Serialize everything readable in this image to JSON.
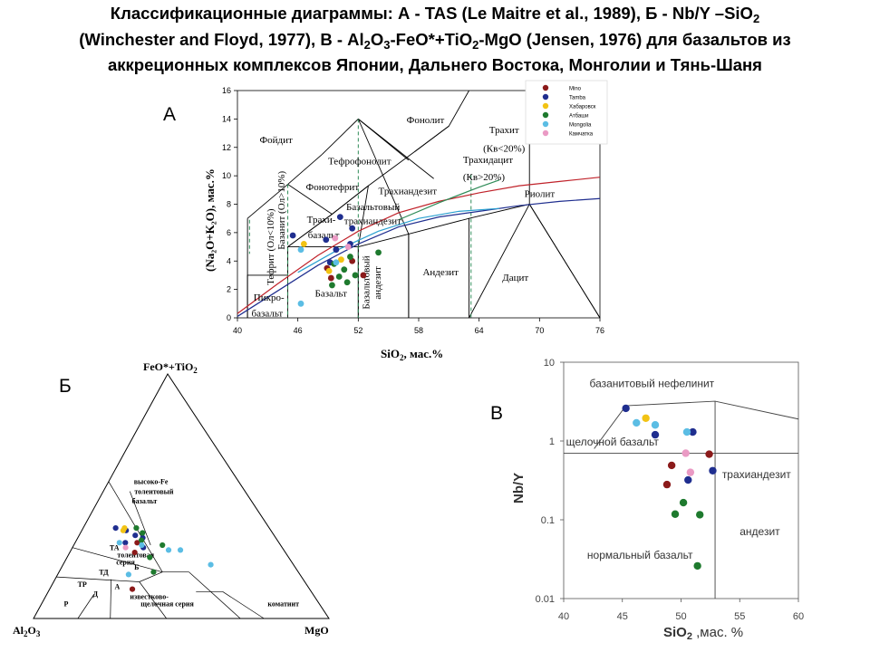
{
  "title": {
    "l1": "Классификационные диаграммы: А - TAS (Le Maitre et al., 1989), Б - Nb/Y –SiO",
    "l1_sub": "2",
    "l2a": "(Winchester and Floyd, 1977), В - Al",
    "l2_s1": "2",
    "l2b": "O",
    "l2_s2": "3",
    "l2c": "-FeO*+TiO",
    "l2_s3": "2",
    "l2d": "-MgO (Jensen, 1976) для базальтов из",
    "l3": "аккреционных комплексов Японии, Дальнего Востока, Монголии и Тянь-Шаня"
  },
  "colors": {
    "Mino": "#8b1a1a",
    "Tamba": "#1f2e8f",
    "Хабаровск": "#f2c314",
    "Атбаши": "#1e7a2e",
    "Mongolia": "#5bbde4",
    "Камчатка": "#ea9ac4"
  },
  "legend": [
    "Mino",
    "Tamba",
    "Хабаровск",
    "Атбаши",
    "Mongolia",
    "Камчатка"
  ],
  "panel_labels": {
    "a": "А",
    "b": "Б",
    "v": "В"
  },
  "chart_data": [
    {
      "id": "tas",
      "type": "scatter",
      "xlim": [
        40,
        76
      ],
      "ylim": [
        0,
        16
      ],
      "xticks": [
        40,
        46,
        52,
        58,
        64,
        70,
        76
      ],
      "yticks": [
        0,
        2,
        4,
        6,
        8,
        10,
        12,
        14,
        16
      ],
      "xlabel": "SiO",
      "xlabel_sub": "2",
      "xlabel_tail": ",  мас.%",
      "ylabel": "(Na₂O+K₂O), мас.%",
      "field_labels": [
        {
          "t": "Фойдит",
          "x": 42.2,
          "y": 12.3
        },
        {
          "t": "Тефрофонолит",
          "x": 49.0,
          "y": 10.8
        },
        {
          "t": "Фонолит",
          "x": 56.8,
          "y": 13.7
        },
        {
          "t": "Фонотефрит",
          "x": 46.8,
          "y": 9.0
        },
        {
          "t": "Трахит",
          "x": 65.0,
          "y": 13.0
        },
        {
          "t": "(Кв<20%)",
          "x": 64.4,
          "y": 11.7
        },
        {
          "t": "Трахидацит",
          "x": 62.4,
          "y": 10.9
        },
        {
          "t": "(Кв>20%)",
          "x": 62.4,
          "y": 9.7
        },
        {
          "t": "Трахиандезит",
          "x": 54.0,
          "y": 8.7
        },
        {
          "t": "Базальтовый",
          "x": 50.8,
          "y": 7.6
        },
        {
          "t": "трахиандезит",
          "x": 50.6,
          "y": 6.6
        },
        {
          "t": "Трахи-",
          "x": 46.9,
          "y": 6.7
        },
        {
          "t": "базальт",
          "x": 47.0,
          "y": 5.6
        },
        {
          "t": "Риолит",
          "x": 68.5,
          "y": 8.5
        },
        {
          "t": "Андезит",
          "x": 58.4,
          "y": 3.0
        },
        {
          "t": "Дацит",
          "x": 66.3,
          "y": 2.6
        },
        {
          "t": "Базальт",
          "x": 47.7,
          "y": 1.5
        },
        {
          "t": "Пикро-",
          "x": 41.6,
          "y": 1.2
        },
        {
          "t": "базальт",
          "x": 41.4,
          "y": 0.1
        }
      ],
      "vertical_labels": [
        {
          "t": "Тефрит (Ол<10%)",
          "x": 43.6,
          "y": 2.3
        },
        {
          "t": "Базанит (Ол>10%)",
          "x": 44.7,
          "y": 4.8
        },
        {
          "t": "Базальтовый",
          "x": 53.1,
          "y": 0.6
        },
        {
          "t": "андезит",
          "x": 54.2,
          "y": 1.3
        }
      ],
      "boundary_lines": [
        [
          [
            41,
            0
          ],
          [
            41,
            3
          ],
          [
            45,
            3
          ],
          [
            45,
            5
          ],
          [
            49.4,
            7.3
          ],
          [
            53,
            9.3
          ],
          [
            57.6,
            11.7
          ],
          [
            61,
            13.5
          ],
          [
            63,
            16.2
          ]
        ],
        [
          [
            45,
            0
          ],
          [
            45,
            5
          ]
        ],
        [
          [
            45,
            5
          ],
          [
            52,
            5
          ],
          [
            52,
            0
          ]
        ],
        [
          [
            52,
            5
          ],
          [
            57,
            5.9
          ],
          [
            57,
            0
          ]
        ],
        [
          [
            57,
            5.9
          ],
          [
            63,
            7
          ],
          [
            63,
            0
          ]
        ],
        [
          [
            63,
            7
          ],
          [
            69,
            8
          ],
          [
            69,
            13
          ]
        ],
        [
          [
            63,
            0
          ],
          [
            69,
            8
          ],
          [
            77,
            0
          ]
        ],
        [
          [
            52,
            14
          ],
          [
            57,
            5.9
          ]
        ],
        [
          [
            48.4,
            11.5
          ],
          [
            52,
            14
          ],
          [
            57,
            11.1
          ]
        ],
        [
          [
            52,
            14
          ],
          [
            59.5,
            9.8
          ]
        ],
        [
          [
            45,
            9.4
          ],
          [
            49.4,
            7.3
          ]
        ],
        [
          [
            45,
            9.4
          ],
          [
            48.4,
            11.5
          ]
        ],
        [
          [
            41,
            7
          ],
          [
            45,
            9.4
          ]
        ],
        [
          [
            41,
            0
          ],
          [
            41,
            7
          ]
        ],
        [
          [
            52,
            0
          ],
          [
            52,
            5
          ],
          [
            53,
            9.3
          ]
        ],
        [
          [
            57,
            0
          ],
          [
            57,
            5.9
          ]
        ],
        [
          [
            49.4,
            7.3
          ],
          [
            53,
            9.3
          ]
        ],
        [
          [
            45,
            5
          ],
          [
            49.4,
            7.3
          ]
        ],
        [
          [
            69,
            8
          ],
          [
            76,
            0
          ]
        ],
        [
          [
            57.6,
            11.7
          ],
          [
            61,
            13.5
          ]
        ]
      ],
      "dashed_lines": [
        [
          [
            45,
            9.4
          ],
          [
            45,
            0
          ]
        ],
        [
          [
            52,
            14
          ],
          [
            52,
            0
          ]
        ],
        [
          [
            63.2,
            10.1
          ],
          [
            63.2,
            0
          ]
        ],
        [
          [
            41.2,
            6.9
          ],
          [
            41.2,
            4.5
          ]
        ]
      ],
      "alkaline_curves": [
        {
          "color": "#c0222a",
          "pts": [
            [
              40,
              0.3
            ],
            [
              44,
              2.4
            ],
            [
              48,
              4.4
            ],
            [
              52,
              6.1
            ],
            [
              56,
              7.4
            ],
            [
              60,
              8.2
            ],
            [
              64,
              8.8
            ],
            [
              68,
              9.3
            ],
            [
              72,
              9.6
            ],
            [
              76,
              9.9
            ]
          ]
        },
        {
          "color": "#1f2e8f",
          "pts": [
            [
              40,
              0.1
            ],
            [
              44,
              1.9
            ],
            [
              48,
              3.7
            ],
            [
              52,
              5.2
            ],
            [
              56,
              6.4
            ],
            [
              60,
              7.1
            ],
            [
              64,
              7.5
            ],
            [
              68,
              7.9
            ],
            [
              72,
              8.2
            ],
            [
              76,
              8.4
            ]
          ]
        },
        {
          "color": "#2aa0d0",
          "pts": [
            [
              46,
              3.2
            ],
            [
              50,
              4.8
            ],
            [
              54,
              6.1
            ],
            [
              58,
              7.0
            ],
            [
              62,
              7.5
            ],
            [
              66,
              7.7
            ]
          ]
        },
        {
          "color": "#2e8b57",
          "pts": [
            [
              56,
              6.9
            ],
            [
              60,
              8.1
            ],
            [
              64,
              9.2
            ],
            [
              66,
              9.7
            ]
          ]
        }
      ],
      "points": [
        {
          "g": "Tamba",
          "x": 45.5,
          "y": 5.8
        },
        {
          "g": "Tamba",
          "x": 48.8,
          "y": 5.5
        },
        {
          "g": "Tamba",
          "x": 49.8,
          "y": 4.8
        },
        {
          "g": "Tamba",
          "x": 50.2,
          "y": 7.1
        },
        {
          "g": "Tamba",
          "x": 51.4,
          "y": 6.3
        },
        {
          "g": "Tamba",
          "x": 51.2,
          "y": 5.2
        },
        {
          "g": "Tamba",
          "x": 49.2,
          "y": 3.9
        },
        {
          "g": "Mino",
          "x": 48.9,
          "y": 3.5
        },
        {
          "g": "Mino",
          "x": 49.3,
          "y": 2.8
        },
        {
          "g": "Mino",
          "x": 51.4,
          "y": 4.0
        },
        {
          "g": "Mino",
          "x": 52.5,
          "y": 3.0
        },
        {
          "g": "Хабаровск",
          "x": 46.6,
          "y": 5.2
        },
        {
          "g": "Хабаровск",
          "x": 49.1,
          "y": 3.3
        },
        {
          "g": "Хабаровск",
          "x": 50.3,
          "y": 4.1
        },
        {
          "g": "Атбаши",
          "x": 49.6,
          "y": 3.8
        },
        {
          "g": "Атбаши",
          "x": 50.1,
          "y": 2.9
        },
        {
          "g": "Атбаши",
          "x": 50.6,
          "y": 3.4
        },
        {
          "g": "Атбаши",
          "x": 51.2,
          "y": 4.3
        },
        {
          "g": "Атбаши",
          "x": 51.7,
          "y": 3.0
        },
        {
          "g": "Атбаши",
          "x": 49.4,
          "y": 2.3
        },
        {
          "g": "Атбаши",
          "x": 50.9,
          "y": 2.5
        },
        {
          "g": "Атбаши",
          "x": 54.0,
          "y": 4.6
        },
        {
          "g": "Mongolia",
          "x": 46.3,
          "y": 4.8
        },
        {
          "g": "Mongolia",
          "x": 49.8,
          "y": 3.9
        },
        {
          "g": "Mongolia",
          "x": 46.3,
          "y": 1.0
        },
        {
          "g": "Камчатка",
          "x": 49.7,
          "y": 5.6
        },
        {
          "g": "Камчатка",
          "x": 51.0,
          "y": 5.0
        }
      ]
    },
    {
      "id": "jensen",
      "type": "scatter",
      "vertices": {
        "top": "FeO*+TiO",
        "top_sub": "2",
        "left": "Al",
        "left_s1": "2",
        "left_mid": "O",
        "left_s2": "3",
        "right": "MgO"
      },
      "field_labels": [
        {
          "t": "высоко-Fe",
          "a": 0.36,
          "f": 0.55
        },
        {
          "t": "толеитовый",
          "a": 0.38,
          "f": 0.51
        },
        {
          "t": "базальт",
          "a": 0.41,
          "f": 0.47
        },
        {
          "t": "ТА",
          "a": 0.59,
          "f": 0.28
        },
        {
          "t": "толеитовая",
          "a": 0.58,
          "f": 0.25
        },
        {
          "t": "серия",
          "a": 0.6,
          "f": 0.22
        },
        {
          "t": "ТД",
          "a": 0.68,
          "f": 0.18
        },
        {
          "t": "Б",
          "a": 0.55,
          "f": 0.2
        },
        {
          "t": "ТР",
          "a": 0.78,
          "f": 0.13
        },
        {
          "t": "Д",
          "a": 0.75,
          "f": 0.09
        },
        {
          "t": "А",
          "a": 0.66,
          "f": 0.12
        },
        {
          "t": "Р",
          "a": 0.87,
          "f": 0.05
        },
        {
          "t": "известково-",
          "a": 0.63,
          "f": 0.08
        },
        {
          "t": "щелочная серия",
          "a": 0.61,
          "f": 0.05
        },
        {
          "t": "коматиит",
          "a": 0.18,
          "f": 0.05
        }
      ],
      "points": [
        {
          "g": "Tamba",
          "a": 0.52,
          "f": 0.37
        },
        {
          "g": "Tamba",
          "a": 0.49,
          "f": 0.36
        },
        {
          "g": "Tamba",
          "a": 0.47,
          "f": 0.34
        },
        {
          "g": "Tamba",
          "a": 0.45,
          "f": 0.33
        },
        {
          "g": "Tamba",
          "a": 0.52,
          "f": 0.31
        },
        {
          "g": "Tamba",
          "a": 0.47,
          "f": 0.29
        },
        {
          "g": "Mino",
          "a": 0.48,
          "f": 0.31
        },
        {
          "g": "Mino",
          "a": 0.51,
          "f": 0.27
        },
        {
          "g": "Mino",
          "a": 0.6,
          "f": 0.12
        },
        {
          "g": "Хабаровск",
          "a": 0.5,
          "f": 0.36
        },
        {
          "g": "Хабаровск",
          "a": 0.49,
          "f": 0.37
        },
        {
          "g": "Атбаши",
          "a": 0.45,
          "f": 0.37
        },
        {
          "g": "Атбаши",
          "a": 0.44,
          "f": 0.35
        },
        {
          "g": "Атбаши",
          "a": 0.46,
          "f": 0.32
        },
        {
          "g": "Атбаши",
          "a": 0.4,
          "f": 0.3
        },
        {
          "g": "Атбаши",
          "a": 0.47,
          "f": 0.25
        },
        {
          "g": "Атбаши",
          "a": 0.49,
          "f": 0.19
        },
        {
          "g": "Mongolia",
          "a": 0.54,
          "f": 0.31
        },
        {
          "g": "Mongolia",
          "a": 0.47,
          "f": 0.3
        },
        {
          "g": "Mongolia",
          "a": 0.39,
          "f": 0.28
        },
        {
          "g": "Mongolia",
          "a": 0.35,
          "f": 0.28
        },
        {
          "g": "Mongolia",
          "a": 0.28,
          "f": 0.22
        },
        {
          "g": "Mongolia",
          "a": 0.58,
          "f": 0.18
        },
        {
          "g": "Камчатка",
          "a": 0.53,
          "f": 0.29
        }
      ]
    },
    {
      "id": "nby",
      "type": "scatter",
      "xlim": [
        40,
        60
      ],
      "ylim_log": [
        0.01,
        10
      ],
      "xticks": [
        40,
        45,
        50,
        55,
        60
      ],
      "yticks": [
        "0.01",
        "0.1",
        "1",
        "10"
      ],
      "xlabel": "SiO",
      "xlabel_sub": "2",
      "xlabel_tail": " ,мас. %",
      "ylabel": "Nb/Y",
      "field_labels": [
        {
          "t": "базанитовый нефелинит",
          "x": 42.2,
          "y": 4.8
        },
        {
          "t": "щелочной базальт",
          "x": 40.2,
          "y": 0.88
        },
        {
          "t": "трахиандезит",
          "x": 53.5,
          "y": 0.34
        },
        {
          "t": "андезит",
          "x": 55.0,
          "y": 0.064
        },
        {
          "t": "нормальный базальт",
          "x": 42.0,
          "y": 0.032
        }
      ],
      "boundary_lines": [
        [
          [
            42.6,
            0.8
          ],
          [
            45.3,
            2.8
          ],
          [
            52.9,
            3.2
          ],
          [
            60,
            1.9
          ]
        ],
        [
          [
            40,
            0.7
          ],
          [
            60,
            0.7
          ]
        ],
        [
          [
            52.9,
            0.01
          ],
          [
            52.9,
            3.2
          ]
        ]
      ],
      "points": [
        {
          "g": "Tamba",
          "x": 45.3,
          "y": 2.6
        },
        {
          "g": "Tamba",
          "x": 47.8,
          "y": 1.2
        },
        {
          "g": "Tamba",
          "x": 51.0,
          "y": 1.3
        },
        {
          "g": "Tamba",
          "x": 52.7,
          "y": 0.42
        },
        {
          "g": "Tamba",
          "x": 50.6,
          "y": 0.32
        },
        {
          "g": "Mino",
          "x": 49.2,
          "y": 0.49
        },
        {
          "g": "Mino",
          "x": 48.8,
          "y": 0.28
        },
        {
          "g": "Mino",
          "x": 52.4,
          "y": 0.68
        },
        {
          "g": "Хабаровск",
          "x": 47.0,
          "y": 1.95
        },
        {
          "g": "Атбаши",
          "x": 50.2,
          "y": 0.165
        },
        {
          "g": "Атбаши",
          "x": 49.5,
          "y": 0.118
        },
        {
          "g": "Атбаши",
          "x": 51.6,
          "y": 0.116
        },
        {
          "g": "Атбаши",
          "x": 51.4,
          "y": 0.026
        },
        {
          "g": "Mongolia",
          "x": 46.2,
          "y": 1.7
        },
        {
          "g": "Mongolia",
          "x": 47.8,
          "y": 1.6
        },
        {
          "g": "Mongolia",
          "x": 50.5,
          "y": 1.3
        },
        {
          "g": "Камчатка",
          "x": 50.4,
          "y": 0.7
        },
        {
          "g": "Камчатка",
          "x": 50.8,
          "y": 0.4
        }
      ]
    }
  ]
}
